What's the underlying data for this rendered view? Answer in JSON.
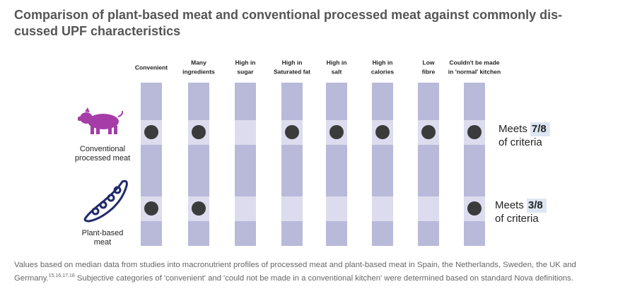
{
  "header": {
    "title_lines": [
      "Comparison of plant-based meat and conventional processed meat against commonly dis-",
      "cussed UPF characteristics"
    ]
  },
  "columns": [
    [
      "Convenient"
    ],
    [
      "Many",
      "ingredients"
    ],
    [
      "High in",
      "sugar"
    ],
    [
      "High in",
      "Saturated fat"
    ],
    [
      "High in",
      "salt"
    ],
    [
      "High in",
      "calories"
    ],
    [
      "Low",
      "fibre"
    ],
    [
      "Couldn't be made",
      "in 'normal' kitchen"
    ]
  ],
  "rows": [
    {
      "label_lines": [
        "Conventional",
        "processed meat"
      ],
      "criteria_met": [
        true,
        true,
        false,
        true,
        true,
        true,
        true,
        true
      ],
      "meets": {
        "prefix": "Meets",
        "score": "7/8",
        "suffix": "of criteria"
      }
    },
    {
      "label_lines": [
        "Plant-based",
        "meat"
      ],
      "criteria_met": [
        true,
        true,
        false,
        false,
        false,
        false,
        false,
        true
      ],
      "meets": {
        "prefix": "Meets",
        "score": "3/8",
        "suffix": "of criteria"
      }
    }
  ],
  "footnote": {
    "text": "Values based on median data from studies into macronutrient profiles of processed meat and plant-based meat in Spain, the Netherlands, Sweden, the UK and Germany.",
    "refs": "15,16,17,18",
    "text_after": " Subjective categories of 'convenient' and 'could not be made in a conventional kitchen' were determined based on standard Nova definitions."
  }
}
